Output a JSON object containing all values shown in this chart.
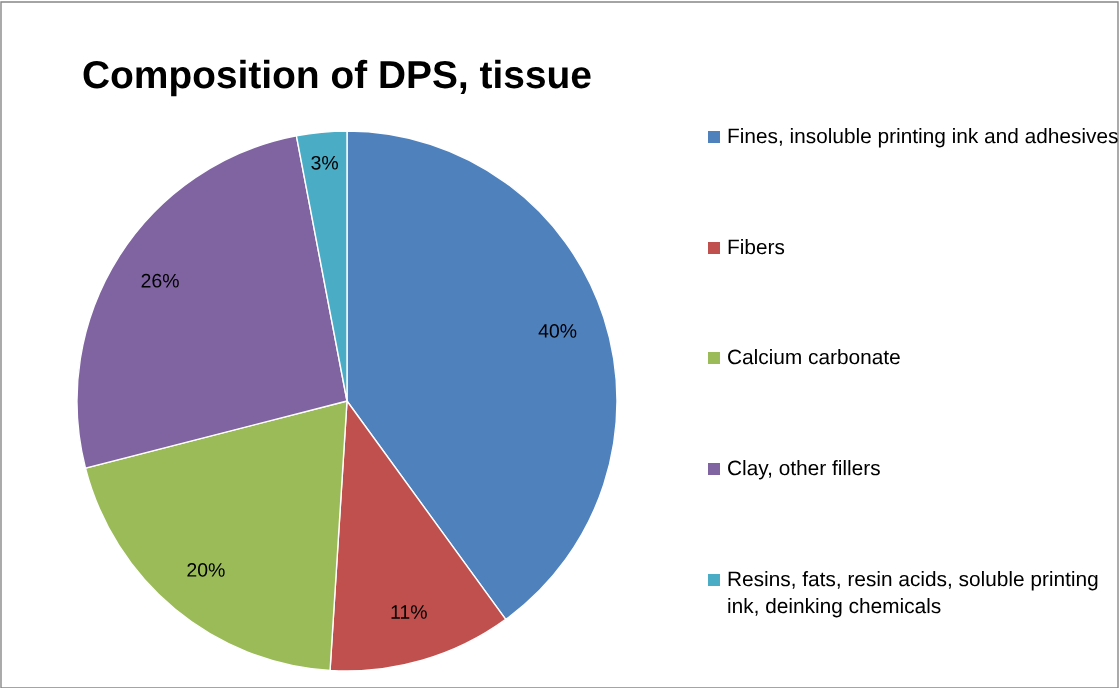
{
  "chart_data": {
    "type": "pie",
    "title": "Composition of DPS, tissue",
    "categories": [
      "Fines, insoluble printing ink and adhesives",
      "Fibers",
      "Calcium carbonate",
      "Clay, other fillers",
      "Resins, fats, resin acids, soluble printing ink, deinking chemicals"
    ],
    "values": [
      40,
      11,
      20,
      26,
      3
    ],
    "value_labels": [
      "40%",
      "11%",
      "20%",
      "26%",
      "3%"
    ],
    "colors": [
      "#4f81bd",
      "#c0504d",
      "#9bbb59",
      "#8064a2",
      "#4bacc6"
    ],
    "legend": "right"
  }
}
